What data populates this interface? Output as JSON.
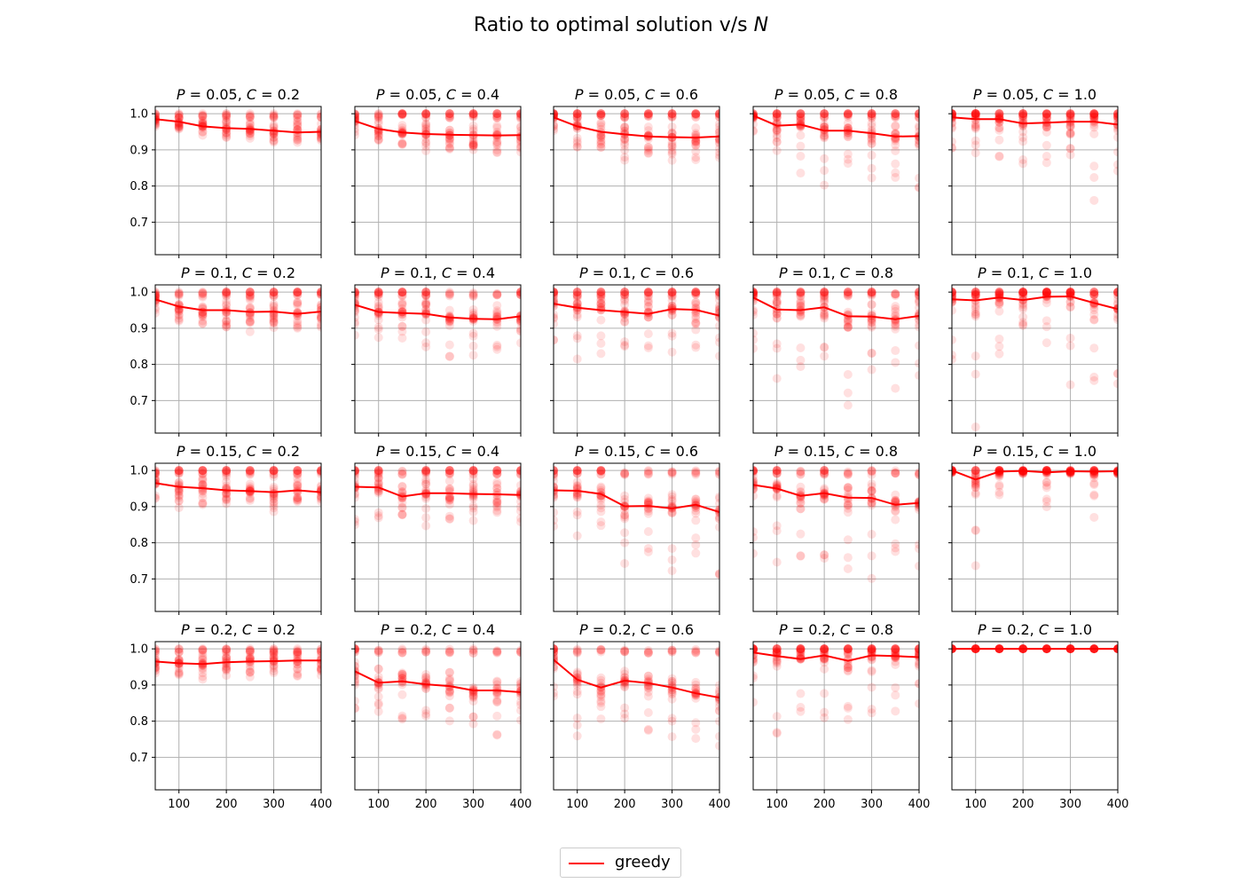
{
  "title": "Ratio to optimal solution v/s",
  "title_symbol": "N",
  "legend": {
    "label": "greedy",
    "color": "#ff0000",
    "placement": "lower-center"
  },
  "chart_data": {
    "type": "scatter",
    "title": "Ratio to optimal solution v/s N",
    "layout": "4x5 grid, shared axes",
    "xlabel": "",
    "ylabel": "",
    "xlim": [
      50,
      400
    ],
    "ylim": [
      0.61,
      1.02
    ],
    "xticks": [
      100,
      200,
      300,
      400
    ],
    "yticks": [
      0.7,
      0.8,
      0.9,
      1.0
    ],
    "ytick_labels": [
      "0.7",
      "0.8",
      "0.9",
      "1.0"
    ],
    "grid": true,
    "x": [
      50,
      100,
      150,
      200,
      250,
      300,
      350,
      400
    ],
    "series": [
      {
        "name": "greedy",
        "color": "#ff0000",
        "line": "mean",
        "scatter": "individual trials (alpha)"
      }
    ],
    "panels": [
      {
        "P": "0.05",
        "C": "0.2",
        "mean": [
          0.985,
          0.978,
          0.965,
          0.96,
          0.958,
          0.953,
          0.948,
          0.95
        ],
        "spread": [
          0.96,
          0.95,
          0.94,
          0.93,
          0.93,
          0.92,
          0.92,
          0.92
        ]
      },
      {
        "P": "0.05",
        "C": "0.4",
        "mean": [
          0.98,
          0.958,
          0.948,
          0.944,
          0.942,
          0.941,
          0.94,
          0.941
        ],
        "spread": [
          0.94,
          0.91,
          0.9,
          0.895,
          0.89,
          0.89,
          0.89,
          0.89
        ]
      },
      {
        "P": "0.05",
        "C": "0.6",
        "mean": [
          0.99,
          0.965,
          0.95,
          0.943,
          0.937,
          0.935,
          0.934,
          0.937
        ],
        "spread": [
          0.95,
          0.89,
          0.87,
          0.87,
          0.87,
          0.87,
          0.87,
          0.87
        ]
      },
      {
        "P": "0.05",
        "C": "0.8",
        "mean": [
          0.995,
          0.967,
          0.97,
          0.953,
          0.953,
          0.946,
          0.937,
          0.938
        ],
        "spread": [
          0.95,
          0.86,
          0.83,
          0.8,
          0.83,
          0.82,
          0.8,
          0.78
        ]
      },
      {
        "P": "0.05",
        "C": "1.0",
        "mean": [
          0.99,
          0.985,
          0.985,
          0.973,
          0.975,
          0.978,
          0.978,
          0.97
        ],
        "spread": [
          0.9,
          0.87,
          0.87,
          0.86,
          0.85,
          0.88,
          0.76,
          0.82
        ]
      },
      {
        "P": "0.1",
        "C": "0.2",
        "mean": [
          0.98,
          0.96,
          0.95,
          0.95,
          0.945,
          0.946,
          0.94,
          0.946
        ],
        "spread": [
          0.94,
          0.92,
          0.91,
          0.9,
          0.89,
          0.9,
          0.9,
          0.9
        ]
      },
      {
        "P": "0.1",
        "C": "0.4",
        "mean": [
          0.965,
          0.945,
          0.942,
          0.94,
          0.93,
          0.926,
          0.925,
          0.933
        ],
        "spread": [
          0.88,
          0.86,
          0.86,
          0.84,
          0.82,
          0.81,
          0.84,
          0.85
        ]
      },
      {
        "P": "0.1",
        "C": "0.6",
        "mean": [
          0.968,
          0.957,
          0.95,
          0.945,
          0.94,
          0.953,
          0.951,
          0.935
        ],
        "spread": [
          0.85,
          0.8,
          0.83,
          0.85,
          0.83,
          0.83,
          0.83,
          0.82
        ]
      },
      {
        "P": "0.1",
        "C": "0.8",
        "mean": [
          0.985,
          0.952,
          0.95,
          0.958,
          0.933,
          0.932,
          0.925,
          0.934
        ],
        "spread": [
          0.78,
          0.76,
          0.77,
          0.8,
          0.63,
          0.74,
          0.73,
          0.74
        ]
      },
      {
        "P": "0.1",
        "C": "1.0",
        "mean": [
          0.98,
          0.977,
          0.985,
          0.978,
          0.987,
          0.988,
          0.97,
          0.953
        ],
        "spread": [
          0.8,
          0.62,
          0.81,
          0.83,
          0.85,
          0.7,
          0.7,
          0.71
        ]
      },
      {
        "P": "0.15",
        "C": "0.2",
        "mean": [
          0.965,
          0.955,
          0.951,
          0.945,
          0.943,
          0.94,
          0.945,
          0.94
        ],
        "spread": [
          0.92,
          0.89,
          0.9,
          0.9,
          0.9,
          0.88,
          0.9,
          0.9
        ]
      },
      {
        "P": "0.15",
        "C": "0.4",
        "mean": [
          0.955,
          0.953,
          0.928,
          0.937,
          0.937,
          0.935,
          0.934,
          0.932
        ],
        "spread": [
          0.82,
          0.86,
          0.85,
          0.84,
          0.86,
          0.86,
          0.86,
          0.85
        ]
      },
      {
        "P": "0.15",
        "C": "0.6",
        "mean": [
          0.945,
          0.944,
          0.935,
          0.901,
          0.902,
          0.895,
          0.905,
          0.885
        ],
        "spread": [
          0.8,
          0.8,
          0.82,
          0.74,
          0.73,
          0.72,
          0.74,
          0.69
        ]
      },
      {
        "P": "0.15",
        "C": "0.8",
        "mean": [
          0.96,
          0.95,
          0.93,
          0.937,
          0.925,
          0.924,
          0.905,
          0.91
        ],
        "spread": [
          0.74,
          0.74,
          0.74,
          0.74,
          0.7,
          0.7,
          0.7,
          0.69
        ]
      },
      {
        "P": "0.15",
        "C": "1.0",
        "mean": [
          1.0,
          0.975,
          0.997,
          0.999,
          0.995,
          0.998,
          0.997,
          0.998
        ],
        "spread": [
          0.99,
          0.7,
          0.9,
          0.99,
          0.81,
          0.99,
          0.84,
          0.99
        ]
      },
      {
        "P": "0.2",
        "C": "0.2",
        "mean": [
          0.965,
          0.96,
          0.958,
          0.963,
          0.965,
          0.966,
          0.968,
          0.968
        ],
        "spread": [
          0.93,
          0.91,
          0.91,
          0.92,
          0.92,
          0.92,
          0.92,
          0.92
        ]
      },
      {
        "P": "0.2",
        "C": "0.4",
        "mean": [
          0.938,
          0.906,
          0.91,
          0.902,
          0.897,
          0.885,
          0.885,
          0.88
        ],
        "spread": [
          0.8,
          0.78,
          0.8,
          0.79,
          0.79,
          0.78,
          0.76,
          0.8
        ]
      },
      {
        "P": "0.2",
        "C": "0.6",
        "mean": [
          0.97,
          0.915,
          0.893,
          0.912,
          0.905,
          0.893,
          0.877,
          0.865
        ],
        "spread": [
          0.85,
          0.75,
          0.79,
          0.78,
          0.77,
          0.7,
          0.74,
          0.73
        ]
      },
      {
        "P": "0.2",
        "C": "0.8",
        "mean": [
          0.99,
          0.98,
          0.972,
          0.982,
          0.967,
          0.982,
          0.98,
          0.977
        ],
        "spread": [
          0.85,
          0.74,
          0.78,
          0.78,
          0.75,
          0.78,
          0.8,
          0.8
        ]
      },
      {
        "P": "0.2",
        "C": "1.0",
        "mean": [
          1.0,
          1.0,
          1.0,
          1.0,
          1.0,
          1.0,
          1.0,
          1.0
        ],
        "spread": [
          1.0,
          1.0,
          1.0,
          1.0,
          1.0,
          1.0,
          1.0,
          1.0
        ]
      }
    ]
  }
}
